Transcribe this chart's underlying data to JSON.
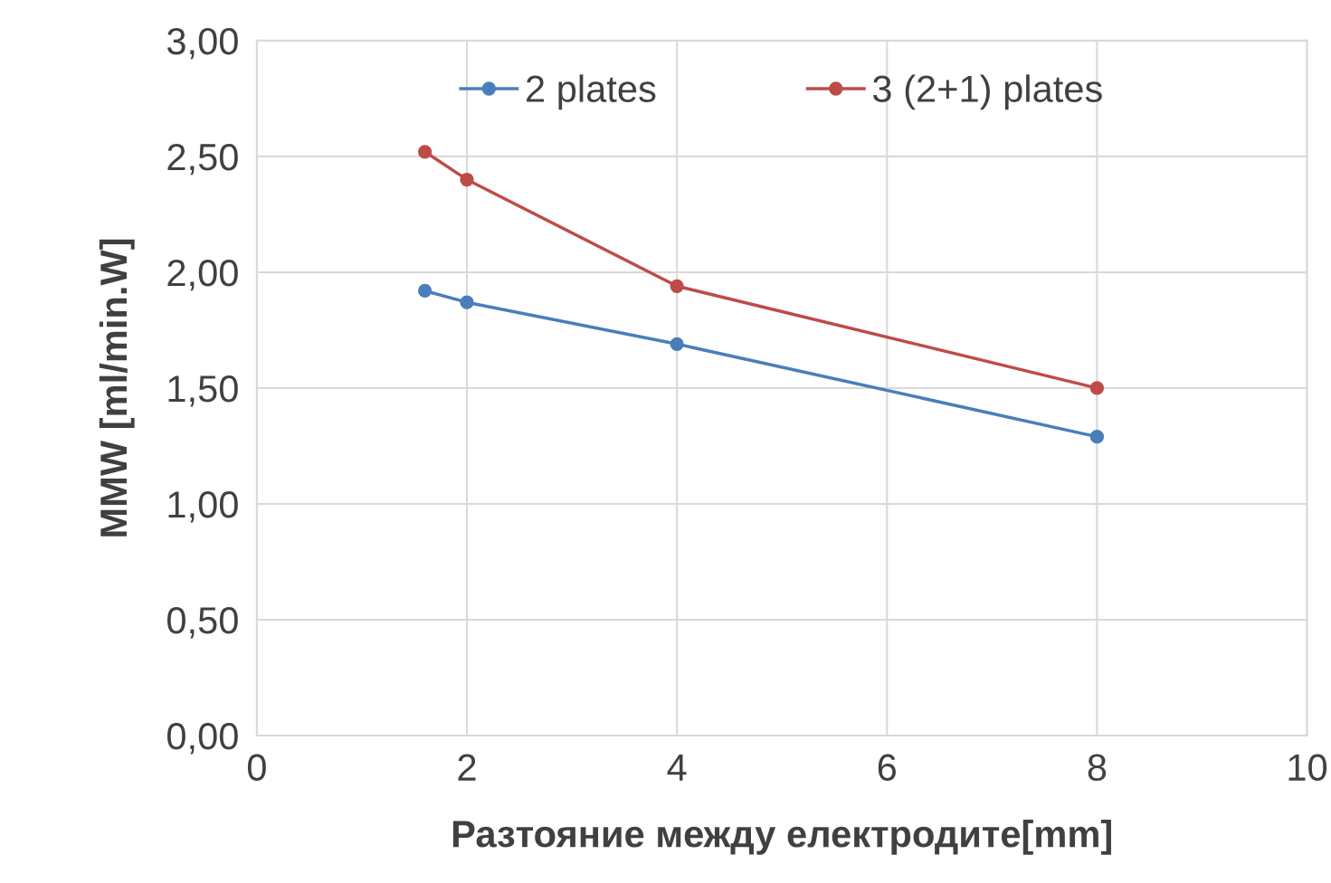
{
  "chart_data": {
    "type": "line",
    "xlabel": "Разтояние между електродите[mm]",
    "ylabel": "MMW [ml/min.W]",
    "series": [
      {
        "name": "2 plates",
        "color": "#4a7ebb",
        "x": [
          1.6,
          2,
          4,
          8
        ],
        "values": [
          1.92,
          1.87,
          1.69,
          1.29
        ]
      },
      {
        "name": "3 (2+1) plates",
        "color": "#be4b48",
        "x": [
          1.6,
          2,
          4,
          8
        ],
        "values": [
          2.52,
          2.4,
          1.94,
          1.5
        ]
      }
    ],
    "xlim": [
      0,
      10
    ],
    "xticks": [
      0,
      2,
      4,
      6,
      8,
      10
    ],
    "ylim": [
      0,
      3
    ],
    "yticks": [
      {
        "value": 0,
        "label": "0,00"
      },
      {
        "value": 0.5,
        "label": "0,50"
      },
      {
        "value": 1,
        "label": "1,00"
      },
      {
        "value": 1.5,
        "label": "1,50"
      },
      {
        "value": 2,
        "label": "2,00"
      },
      {
        "value": 2.5,
        "label": "2,50"
      },
      {
        "value": 3,
        "label": "3,00"
      }
    ],
    "grid": true,
    "legend": "top",
    "marker": "circle",
    "line_style": "solid"
  }
}
